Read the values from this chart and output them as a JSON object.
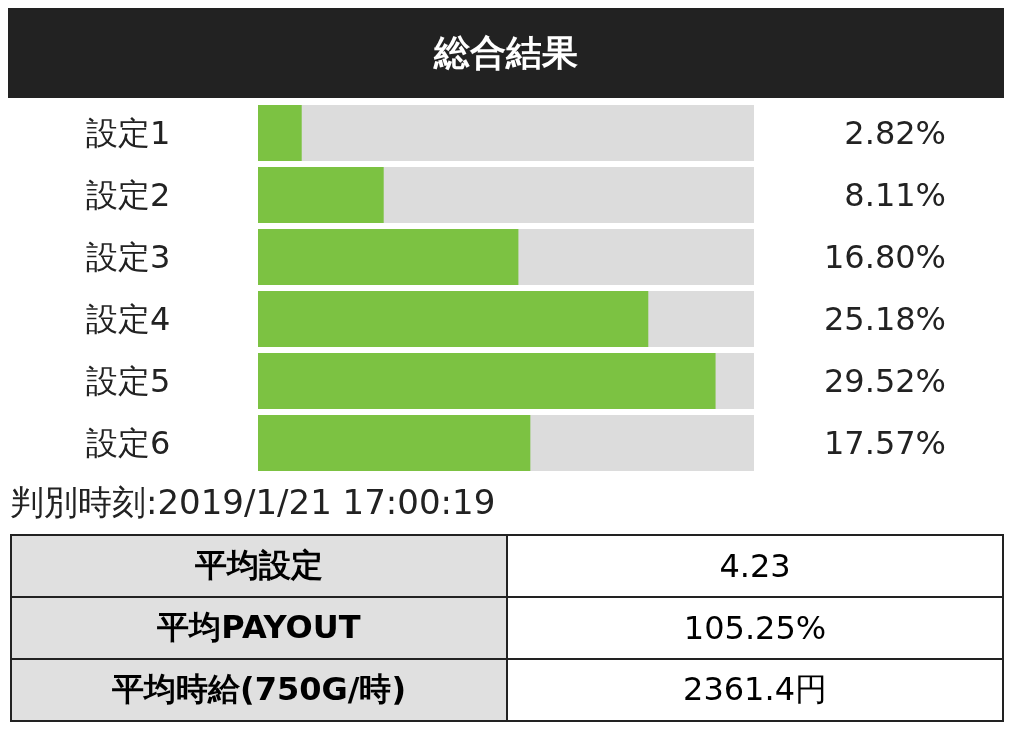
{
  "chart_data": {
    "type": "bar",
    "orientation": "horizontal",
    "title": "総合結果",
    "categories": [
      "設定1",
      "設定2",
      "設定3",
      "設定4",
      "設定5",
      "設定6"
    ],
    "values": [
      2.82,
      8.11,
      16.8,
      25.18,
      29.52,
      17.57
    ],
    "value_labels": [
      "2.82%",
      "8.11%",
      "16.80%",
      "25.18%",
      "29.52%",
      "17.57%"
    ],
    "color": "#7cc242",
    "annotations": [
      "判別時刻:2019/1/21 17:00:19",
      "平均設定",
      "4.23",
      "平均PAYOUT",
      "105.25%",
      "平均時給(750G/時)",
      "2361.4円"
    ]
  }
}
